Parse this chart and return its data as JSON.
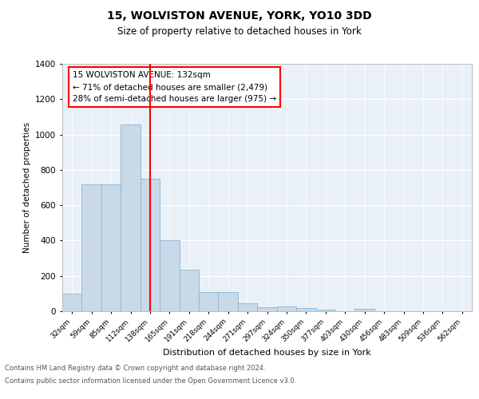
{
  "title1": "15, WOLVISTON AVENUE, YORK, YO10 3DD",
  "title2": "Size of property relative to detached houses in York",
  "xlabel": "Distribution of detached houses by size in York",
  "ylabel": "Number of detached properties",
  "bar_labels": [
    "32sqm",
    "59sqm",
    "85sqm",
    "112sqm",
    "138sqm",
    "165sqm",
    "191sqm",
    "218sqm",
    "244sqm",
    "271sqm",
    "297sqm",
    "324sqm",
    "350sqm",
    "377sqm",
    "403sqm",
    "430sqm",
    "456sqm",
    "483sqm",
    "509sqm",
    "536sqm",
    "562sqm"
  ],
  "bar_values": [
    100,
    720,
    720,
    1055,
    750,
    400,
    235,
    110,
    110,
    45,
    22,
    28,
    20,
    10,
    0,
    12,
    0,
    0,
    0,
    0,
    0
  ],
  "bar_color": "#c9d9e8",
  "bar_edgecolor": "#8ab4d4",
  "vline_x_index": 4,
  "vline_color": "red",
  "annotation_text": "15 WOLVISTON AVENUE: 132sqm\n← 71% of detached houses are smaller (2,479)\n28% of semi-detached houses are larger (975) →",
  "annotation_box_color": "white",
  "annotation_box_edgecolor": "red",
  "ylim": [
    0,
    1400
  ],
  "yticks": [
    0,
    200,
    400,
    600,
    800,
    1000,
    1200,
    1400
  ],
  "footer1": "Contains HM Land Registry data © Crown copyright and database right 2024.",
  "footer2": "Contains public sector information licensed under the Open Government Licence v3.0.",
  "plot_bg": "#eaf0f8"
}
